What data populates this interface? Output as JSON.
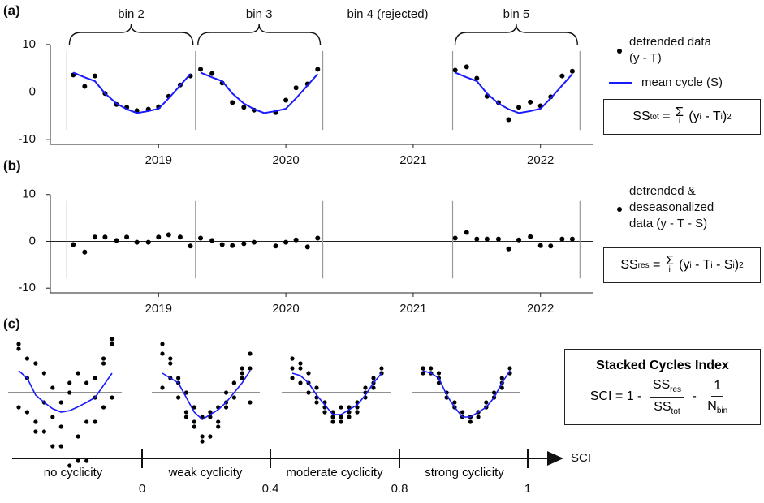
{
  "chart_data": [
    {
      "type": "scatter",
      "panel_label": "(a)",
      "xlim": [
        2018.15,
        2022.41
      ],
      "xticks": [
        2019,
        2020,
        2021,
        2022
      ],
      "ylim": [
        -11,
        11
      ],
      "yticks": [
        -10,
        0,
        10
      ],
      "bin_edges": [
        2018.28,
        2019.29,
        2020.29,
        2021.31,
        2022.31
      ],
      "bin_labels": [
        "bin 2",
        "bin 3",
        "bin 4 (rejected)",
        "bin 5"
      ],
      "braces": [
        true,
        true,
        false,
        true
      ],
      "series": [
        {
          "name": "detrended data (y - T)",
          "color": "#000000",
          "mode": "points",
          "x": [
            2018.33,
            2018.42,
            2018.5,
            2018.58,
            2018.67,
            2018.75,
            2018.83,
            2018.92,
            2019.0,
            2019.08,
            2019.17,
            2019.25,
            2019.33,
            2019.42,
            2019.5,
            2019.58,
            2019.67,
            2019.75,
            2019.92,
            2020.0,
            2020.08,
            2020.17,
            2020.25,
            2021.33,
            2021.42,
            2021.5,
            2021.58,
            2021.67,
            2021.75,
            2021.83,
            2021.92,
            2022.0,
            2022.08,
            2022.17,
            2022.25
          ],
          "values": [
            3.6,
            1.2,
            3.4,
            -0.3,
            -2.6,
            -3.2,
            -3.9,
            -3.6,
            -3.1,
            -0.9,
            1.5,
            3.4,
            4.8,
            3.9,
            1.9,
            -2.2,
            -3.2,
            -3.8,
            -4.3,
            -1.7,
            0.9,
            1.7,
            4.8,
            4.6,
            5.3,
            2.9,
            -0.9,
            -2.2,
            -5.8,
            -3.2,
            -2.1,
            -2.9,
            -1.0,
            3.4,
            4.4
          ]
        },
        {
          "name": "mean cycle (S)",
          "color": "#1a1aff",
          "mode": "line",
          "x": [
            2018.33,
            2018.42,
            2018.5,
            2018.58,
            2018.67,
            2018.75,
            2018.83,
            2018.92,
            2019.0,
            2019.08,
            2019.17,
            2019.25,
            null,
            2019.33,
            2019.42,
            2019.5,
            2019.58,
            2019.67,
            2019.75,
            2019.83,
            2019.92,
            2020.0,
            2020.08,
            2020.17,
            2020.25,
            null,
            2021.33,
            2021.42,
            2021.5,
            2021.58,
            2021.67,
            2021.75,
            2021.83,
            2021.92,
            2022.0,
            2022.08,
            2022.17,
            2022.25
          ],
          "values": [
            4.1,
            3.1,
            2.3,
            -0.3,
            -2.4,
            -3.6,
            -4.4,
            -4.0,
            -3.5,
            -1.3,
            1.4,
            3.8,
            null,
            4.1,
            3.1,
            2.3,
            -0.3,
            -2.4,
            -3.6,
            -4.4,
            -4.0,
            -3.5,
            -1.3,
            1.4,
            3.8,
            null,
            4.1,
            3.1,
            2.3,
            -0.3,
            -2.4,
            -3.6,
            -4.4,
            -4.0,
            -3.5,
            -1.3,
            1.4,
            3.8
          ]
        }
      ],
      "formula": [
        "SS",
        "tot",
        " = ",
        "Σ",
        "i",
        " (y",
        "i",
        " - T",
        "i",
        ")",
        "2"
      ]
    },
    {
      "type": "scatter",
      "panel_label": "(b)",
      "xlim": [
        2018.15,
        2022.41
      ],
      "xticks": [
        2019,
        2020,
        2021,
        2022
      ],
      "ylim": [
        -11,
        11
      ],
      "yticks": [
        -10,
        0,
        10
      ],
      "bin_edges": [
        2018.28,
        2019.29,
        2020.29,
        2021.31,
        2022.31
      ],
      "series": [
        {
          "name": "detrended & deseasonalized data (y - T - S)",
          "color": "#000000",
          "mode": "points",
          "x": [
            2018.33,
            2018.42,
            2018.5,
            2018.58,
            2018.67,
            2018.75,
            2018.83,
            2018.92,
            2019.0,
            2019.08,
            2019.17,
            2019.25,
            2019.33,
            2019.42,
            2019.5,
            2019.58,
            2019.67,
            2019.75,
            2019.92,
            2020.0,
            2020.08,
            2020.17,
            2020.25,
            2021.33,
            2021.42,
            2021.5,
            2021.58,
            2021.67,
            2021.75,
            2021.83,
            2021.92,
            2022.0,
            2022.08,
            2022.17,
            2022.25
          ],
          "values": [
            -0.7,
            -2.3,
            0.9,
            0.9,
            0.2,
            0.9,
            -0.2,
            -0.2,
            0.9,
            1.4,
            0.9,
            -1.0,
            0.7,
            0.2,
            -0.7,
            -0.9,
            -0.5,
            -0.2,
            -1.0,
            -0.2,
            0.3,
            -1.2,
            0.7,
            0.7,
            1.9,
            0.5,
            0.5,
            0.5,
            -1.6,
            0.3,
            1.0,
            -0.9,
            -1.0,
            0.5,
            0.5
          ]
        }
      ],
      "formula": [
        "SS",
        "res",
        " = ",
        "Σ",
        "i",
        " (y",
        "i",
        " - T",
        "i",
        " - S",
        "i",
        ")",
        "2"
      ]
    },
    {
      "type": "sci_schematic",
      "panel_label": "(c)",
      "point_color": "#000000",
      "line_color": "#1a1aff",
      "examples": [
        {
          "label": "no cyclicity",
          "cycles": [
            [
              10,
              -4,
              6,
              -2,
              -11,
              -7,
              0,
              4,
              -14,
              -6,
              7,
              -1
            ],
            [
              9,
              7,
              -8,
              4,
              -5,
              -2,
              -15,
              -9,
              2,
              3,
              -3,
              11
            ],
            [
              -3,
              3,
              -6,
              -8,
              1,
              -11,
              2,
              -14,
              -6,
              -1,
              6,
              10
            ]
          ],
          "mean": [
            4.5,
            3.0,
            -0.5,
            -2.0,
            -3.3,
            -4.0,
            -3.7,
            -2.9,
            -2.0,
            -1.0,
            1.5,
            4.0
          ]
        },
        {
          "label": "weak cyclicity",
          "cycles": [
            [
              10,
              7,
              3,
              0,
              -6,
              -9,
              -4,
              -3,
              -2,
              -1,
              5,
              8
            ],
            [
              8,
              6,
              2,
              -4,
              -3,
              -5,
              -9,
              -7,
              -3,
              2,
              3,
              5
            ],
            [
              1,
              3,
              -1,
              -5,
              -7,
              -10,
              -5,
              -6,
              0,
              2,
              4,
              -2
            ]
          ],
          "mean": [
            4,
            3,
            2,
            -1,
            -4,
            -5.5,
            -4.5,
            -3.5,
            -2,
            0,
            2,
            4.5
          ]
        },
        {
          "label": "moderate cyclicity",
          "cycles": [
            [
              7,
              5,
              4,
              -1,
              -3,
              -5,
              -6,
              -4,
              -2,
              1,
              3,
              5
            ],
            [
              5,
              6,
              2,
              1,
              -2,
              -6,
              -5,
              -5,
              -3,
              -1,
              2,
              4
            ],
            [
              3,
              2,
              0,
              -2,
              -4,
              -4,
              -3,
              -3,
              -4,
              0,
              1,
              4
            ]
          ],
          "mean": [
            4,
            3.5,
            2,
            -0.5,
            -2.5,
            -4.5,
            -4.5,
            -3.5,
            -2.5,
            -0.5,
            2,
            4
          ]
        },
        {
          "label": "strong cyclicity",
          "cycles": [
            [
              5,
              5,
              4,
              0,
              -3,
              -5,
              -6,
              -4,
              -3,
              -1,
              2,
              5
            ],
            [
              5,
              4,
              3,
              -1,
              -2,
              -5,
              -5,
              -5,
              -3,
              0,
              3,
              4
            ],
            [
              4,
              4,
              2,
              -1,
              -3,
              -4,
              -5,
              -4,
              -2,
              -1,
              1,
              4
            ]
          ],
          "mean": [
            4.5,
            4,
            3,
            -0.5,
            -3,
            -5,
            -5,
            -4,
            -3,
            -1,
            2,
            4.5
          ]
        }
      ],
      "axis_label": "SCI",
      "ticks": [
        0,
        0.4,
        0.8,
        1
      ],
      "index_title": "Stacked Cycles Index",
      "formula": [
        "SCI = 1 - ",
        "SS",
        "res",
        "SS",
        "tot",
        " - ",
        "1",
        "N",
        "bin"
      ]
    }
  ]
}
